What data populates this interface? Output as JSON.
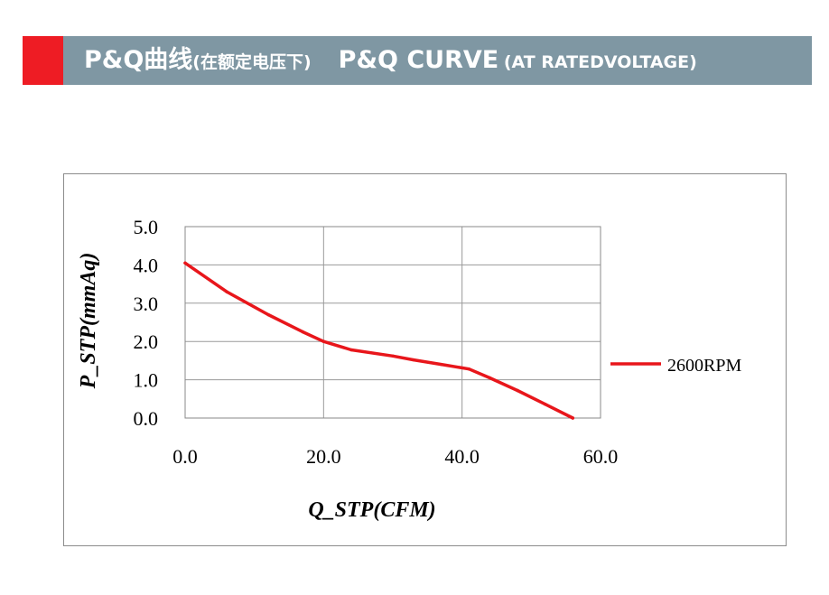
{
  "header": {
    "title_cn": "P&Q曲线",
    "title_cn_sub": "(在额定电压下)",
    "title_en": "P&Q CURVE",
    "title_en_sub": "(AT RATEDVOLTAGE)",
    "accent_color": "#ee1c24",
    "bar_color": "#7f97a3"
  },
  "chart_data": {
    "type": "line",
    "xlabel": "Q_STP(CFM)",
    "ylabel": "P_STP(mmAq)",
    "xlim": [
      0,
      60
    ],
    "ylim": [
      0,
      5
    ],
    "x_ticks": [
      "0.0",
      "20.0",
      "40.0",
      "60.0"
    ],
    "y_ticks": [
      "0.0",
      "1.0",
      "2.0",
      "3.0",
      "4.0",
      "5.0"
    ],
    "grid": true,
    "legend_position": "right",
    "series": [
      {
        "name": "2600RPM",
        "color": "#e8161b",
        "x": [
          0,
          6,
          12,
          17,
          20,
          24,
          30,
          33,
          37,
          41,
          44,
          48,
          52,
          56
        ],
        "y": [
          4.05,
          3.3,
          2.7,
          2.25,
          2.0,
          1.78,
          1.62,
          1.52,
          1.4,
          1.28,
          1.05,
          0.72,
          0.36,
          0.0
        ]
      }
    ]
  }
}
